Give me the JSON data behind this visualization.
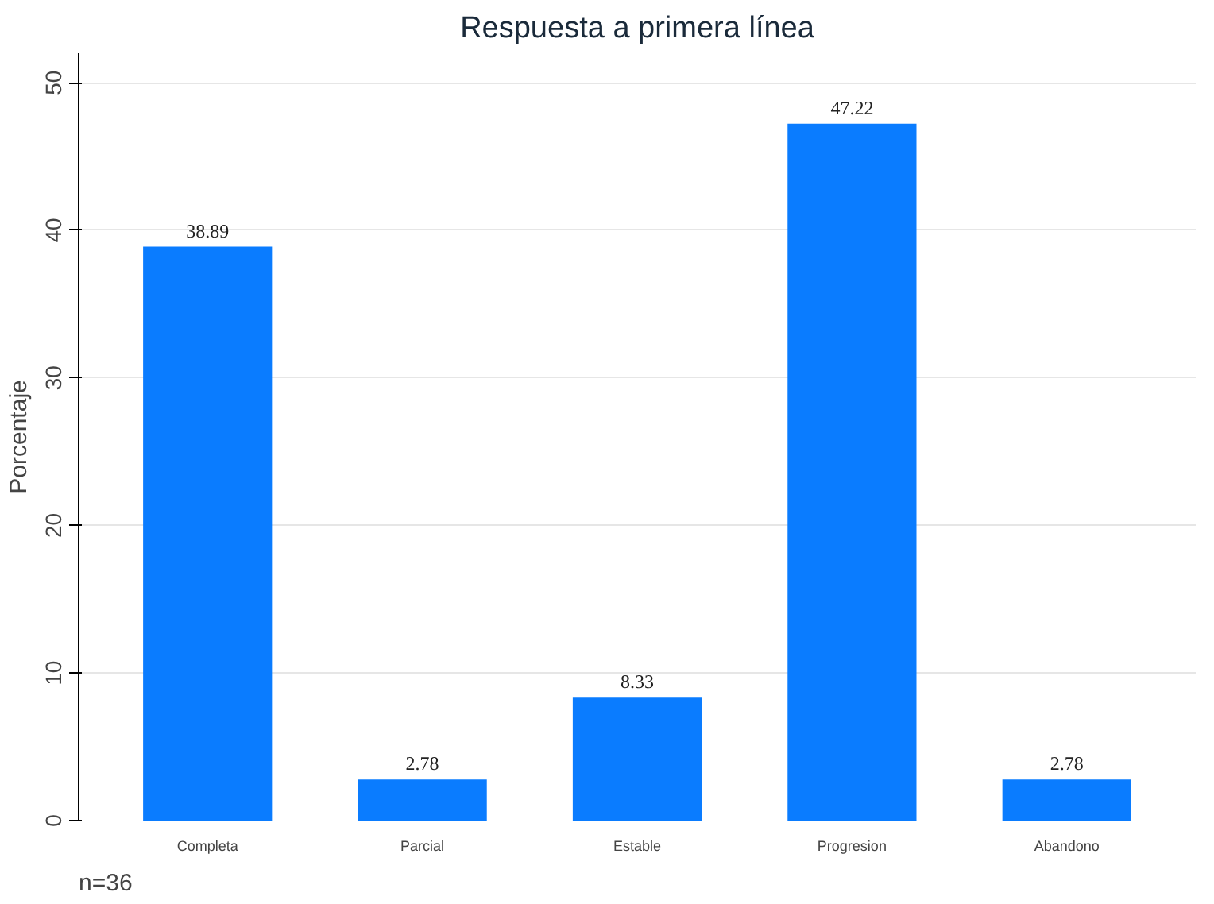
{
  "chart_data": {
    "type": "bar",
    "title": "Respuesta a primera línea",
    "ylabel": "Porcentaje",
    "categories": [
      "Completa",
      "Parcial",
      "Estable",
      "Progresion",
      "Abandono"
    ],
    "values": [
      38.89,
      2.78,
      8.33,
      47.22,
      2.78
    ],
    "color": "#0a7cff",
    "ylim": [
      0,
      52
    ],
    "yticks": [
      0,
      10,
      20,
      30,
      40,
      50
    ],
    "grid": "y",
    "data_labels": true,
    "annotations": [
      "n=36"
    ]
  }
}
